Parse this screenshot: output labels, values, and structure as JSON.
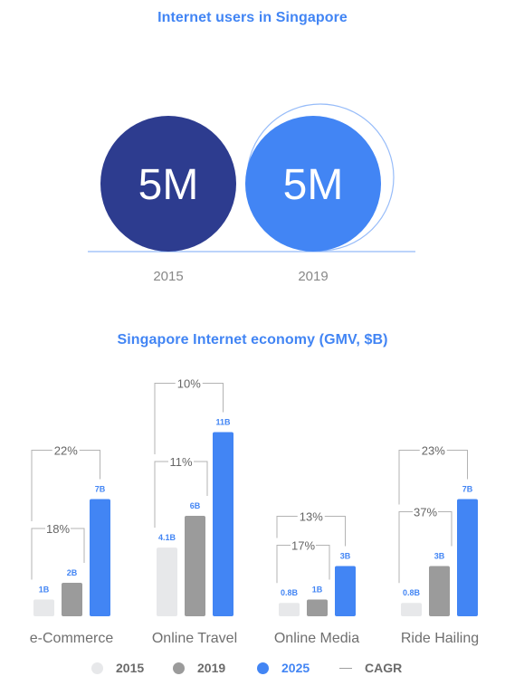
{
  "colors": {
    "accent": "#4285f4",
    "dark_blue": "#2d3c8f",
    "light_bar": "#e7e8ea",
    "mid_bar": "#9b9b9b",
    "bar_2025": "#4285f4",
    "bracket": "#b3b3b3",
    "text_gray": "#666666"
  },
  "chart_data": [
    {
      "type": "bubble",
      "title": "Internet users in Singapore",
      "categories": [
        "2015",
        "2019"
      ],
      "values": [
        5,
        5
      ],
      "value_labels": [
        "5M",
        "5M"
      ],
      "unit": "M"
    },
    {
      "type": "bar",
      "title": "Singapore Internet economy (GMV, $B)",
      "categories": [
        "e-Commerce",
        "Online Travel",
        "Online Media",
        "Ride Hailing"
      ],
      "series": [
        {
          "name": "2015",
          "values": [
            1,
            4.1,
            0.8,
            0.8
          ],
          "labels": [
            "1B",
            "4.1B",
            "0.8B",
            "0.8B"
          ]
        },
        {
          "name": "2019",
          "values": [
            2,
            6,
            1,
            3
          ],
          "labels": [
            "2B",
            "6B",
            "1B",
            "3B"
          ]
        },
        {
          "name": "2025",
          "values": [
            7,
            11,
            3,
            7
          ],
          "labels": [
            "7B",
            "11B",
            "3B",
            "7B"
          ]
        }
      ],
      "cagr": {
        "label": "CAGR",
        "cagr_2015_2025": [
          "22%",
          "10%",
          "13%",
          "23%"
        ],
        "cagr_2015_2019": [
          "18%",
          "11%",
          "17%",
          "37%"
        ]
      },
      "legend_position": "bottom",
      "grid": false
    }
  ]
}
